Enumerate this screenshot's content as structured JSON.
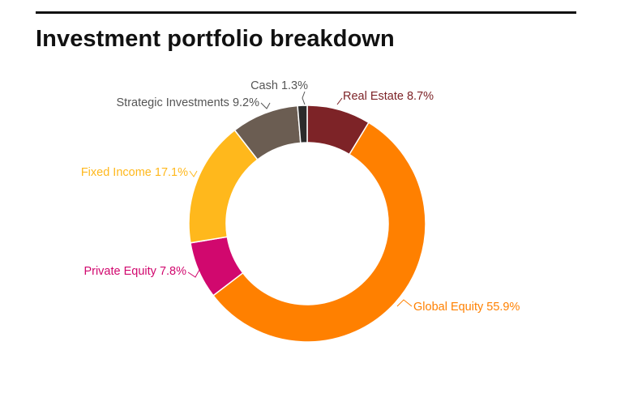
{
  "page": {
    "title": "Investment portfolio breakdown"
  },
  "chart_data": {
    "type": "pie",
    "variant": "donut",
    "title": "Investment portfolio breakdown",
    "slices": [
      {
        "name": "Real Estate",
        "value": 8.7,
        "label": "Real Estate 8.7%",
        "color": "#7d2327"
      },
      {
        "name": "Global Equity",
        "value": 55.9,
        "label": "Global Equity 55.9%",
        "color": "#ff8000"
      },
      {
        "name": "Private Equity",
        "value": 7.8,
        "label": "Private Equity 7.8%",
        "color": "#d1086e"
      },
      {
        "name": "Fixed Income",
        "value": 17.1,
        "label": "Fixed Income 17.1%",
        "color": "#ffb81c"
      },
      {
        "name": "Strategic Investments",
        "value": 9.2,
        "label": "Strategic Investments 9.2%",
        "color": "#6b5d52"
      },
      {
        "name": "Cash",
        "value": 1.3,
        "label": "Cash 1.3%",
        "color": "#2b2b2b"
      }
    ],
    "legend": "none (labels on slices)"
  }
}
